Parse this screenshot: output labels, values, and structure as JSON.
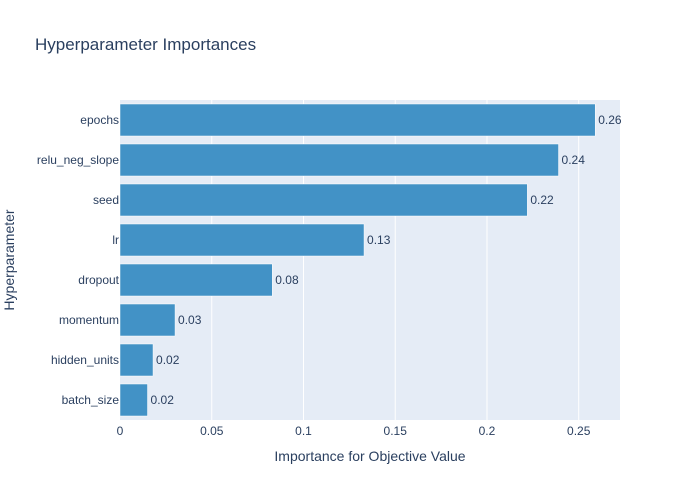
{
  "chart_data": {
    "type": "bar",
    "orientation": "horizontal",
    "title": "Hyperparameter Importances",
    "xlabel": "Importance for Objective Value",
    "ylabel": "Hyperparameter",
    "categories": [
      "epochs",
      "relu_neg_slope",
      "seed",
      "lr",
      "dropout",
      "momentum",
      "hidden_units",
      "batch_size"
    ],
    "values": [
      0.259,
      0.239,
      0.222,
      0.133,
      0.083,
      0.03,
      0.018,
      0.015
    ],
    "value_labels": [
      "0.26",
      "0.24",
      "0.22",
      "0.13",
      "0.08",
      "0.03",
      "0.02",
      "0.02"
    ],
    "xlim": [
      0,
      0.2725
    ],
    "xticks": [
      0,
      0.05,
      0.1,
      0.15,
      0.2,
      0.25
    ],
    "xtick_labels": [
      "0",
      "0.05",
      "0.1",
      "0.15",
      "0.2",
      "0.25"
    ],
    "grid": true,
    "bar_color": "#4292c6",
    "plot_background": "#e5ecf6",
    "text_color": "#2a3f5f"
  }
}
